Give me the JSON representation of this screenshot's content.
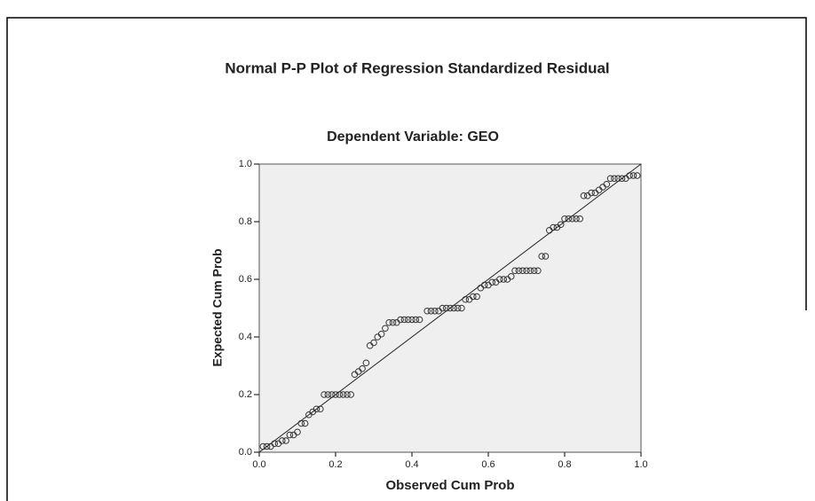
{
  "chart_data": {
    "type": "scatter",
    "title": "Normal P-P Plot of Regression Standardized Residual",
    "subtitle": "Dependent Variable: GEO",
    "x_label": "Observed Cum Prob",
    "y_label": "Expected Cum Prob",
    "xlim": [
      0,
      1
    ],
    "ylim": [
      0,
      1
    ],
    "xticks": [
      {
        "value": 0,
        "label": "0.0"
      },
      0.2,
      0.4,
      0.6,
      0.8,
      {
        "value": 1,
        "label": "1.0"
      }
    ],
    "yticks": [
      {
        "value": 0,
        "label": "0.0"
      },
      0.2,
      0.4,
      0.6,
      0.8,
      {
        "value": 1,
        "label": "1.0"
      }
    ],
    "reference_line": true,
    "color": "#333333",
    "x": [
      0.01,
      0.02,
      0.03,
      0.04,
      0.05,
      0.06,
      0.07,
      0.08,
      0.09,
      0.1,
      0.11,
      0.12,
      0.13,
      0.14,
      0.15,
      0.16,
      0.17,
      0.18,
      0.19,
      0.2,
      0.21,
      0.22,
      0.23,
      0.24,
      0.25,
      0.26,
      0.27,
      0.28,
      0.29,
      0.3,
      0.31,
      0.32,
      0.33,
      0.34,
      0.35,
      0.36,
      0.37,
      0.38,
      0.39,
      0.4,
      0.41,
      0.42,
      0.44,
      0.45,
      0.46,
      0.47,
      0.48,
      0.49,
      0.5,
      0.51,
      0.52,
      0.53,
      0.54,
      0.55,
      0.56,
      0.57,
      0.58,
      0.59,
      0.6,
      0.61,
      0.62,
      0.63,
      0.64,
      0.65,
      0.66,
      0.67,
      0.68,
      0.69,
      0.7,
      0.71,
      0.72,
      0.73,
      0.74,
      0.75,
      0.76,
      0.77,
      0.78,
      0.79,
      0.8,
      0.81,
      0.82,
      0.83,
      0.84,
      0.85,
      0.86,
      0.87,
      0.88,
      0.89,
      0.9,
      0.91,
      0.92,
      0.93,
      0.94,
      0.95,
      0.96,
      0.97,
      0.98,
      0.99
    ],
    "values": [
      0.02,
      0.02,
      0.02,
      0.03,
      0.03,
      0.04,
      0.04,
      0.06,
      0.06,
      0.07,
      0.1,
      0.1,
      0.13,
      0.14,
      0.15,
      0.15,
      0.2,
      0.2,
      0.2,
      0.2,
      0.2,
      0.2,
      0.2,
      0.2,
      0.27,
      0.28,
      0.29,
      0.31,
      0.37,
      0.38,
      0.4,
      0.41,
      0.43,
      0.45,
      0.45,
      0.45,
      0.46,
      0.46,
      0.46,
      0.46,
      0.46,
      0.46,
      0.49,
      0.49,
      0.49,
      0.49,
      0.5,
      0.5,
      0.5,
      0.5,
      0.5,
      0.5,
      0.53,
      0.53,
      0.54,
      0.54,
      0.57,
      0.58,
      0.58,
      0.59,
      0.59,
      0.6,
      0.6,
      0.6,
      0.61,
      0.63,
      0.63,
      0.63,
      0.63,
      0.63,
      0.63,
      0.63,
      0.68,
      0.68,
      0.77,
      0.78,
      0.78,
      0.79,
      0.81,
      0.81,
      0.81,
      0.81,
      0.81,
      0.89,
      0.89,
      0.9,
      0.9,
      0.91,
      0.92,
      0.93,
      0.95,
      0.95,
      0.95,
      0.95,
      0.95,
      0.96,
      0.96,
      0.96
    ]
  }
}
